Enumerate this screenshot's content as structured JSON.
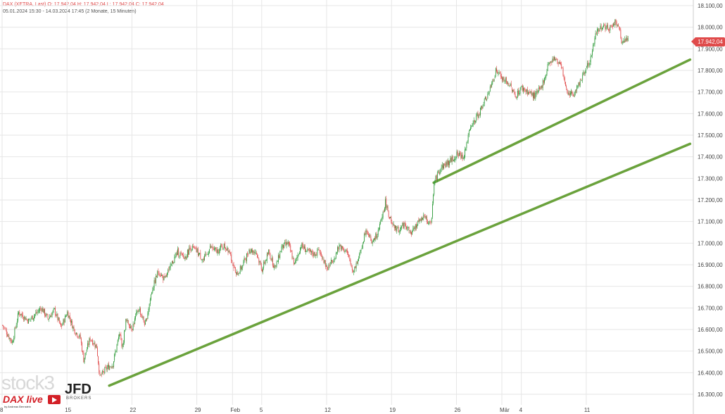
{
  "header": {
    "symbol_line": "DAX (XETRA, Last)  O: 17.942,04  H: 17.942,04  L: 17.942,04  C: 17.942,04",
    "range_line": "05.01.2024 15:30 - 14.03.2024 17:45   (2 Monate, 15 Minuten)"
  },
  "last_price_label": "17.942,04",
  "watermarks": {
    "brand": "stock3",
    "partner": "JFD",
    "partner_sub": "BROKERS",
    "show": "DAX live",
    "byline": "by Andreas Bernstein"
  },
  "colors": {
    "up": "#2e9b3a",
    "down": "#e04b4b",
    "trendline": "#6aa23c",
    "price_tag": "#e04b4b"
  },
  "chart_data": {
    "type": "candlestick",
    "title": "DAX (XETRA, Last)",
    "interval": "15 Minuten",
    "range": "05.01.2024 15:30 - 14.03.2024 17:45",
    "ylim": [
      16300,
      18100
    ],
    "y_ticks": [
      16300,
      16400,
      16500,
      16600,
      16700,
      16800,
      16900,
      17000,
      17100,
      17200,
      17300,
      17400,
      17500,
      17600,
      17700,
      17800,
      17900,
      18000,
      18100
    ],
    "y_tick_labels": [
      "16.300,00",
      "16.400,00",
      "16.500,00",
      "16.600,00",
      "16.700,00",
      "16.800,00",
      "16.900,00",
      "17.000,00",
      "17.100,00",
      "17.200,00",
      "17.300,00",
      "17.400,00",
      "17.500,00",
      "17.600,00",
      "17.700,00",
      "17.800,00",
      "17.900,00",
      "18.000,00",
      "18.100,00"
    ],
    "x_tick_labels": [
      "8",
      "15",
      "22",
      "29",
      "Feb",
      "5",
      "12",
      "19",
      "26",
      "Mär",
      "4",
      "11"
    ],
    "x_tick_idx": [
      0,
      20,
      40,
      60,
      71,
      80,
      100,
      120,
      140,
      154,
      160,
      180
    ],
    "grid": true,
    "close_path": [
      [
        0,
        16620
      ],
      [
        3,
        16540
      ],
      [
        5,
        16680
      ],
      [
        8,
        16640
      ],
      [
        12,
        16700
      ],
      [
        14,
        16650
      ],
      [
        16,
        16690
      ],
      [
        18,
        16610
      ],
      [
        20,
        16680
      ],
      [
        22,
        16600
      ],
      [
        24,
        16560
      ],
      [
        25,
        16460
      ],
      [
        27,
        16560
      ],
      [
        29,
        16520
      ],
      [
        30,
        16380
      ],
      [
        32,
        16420
      ],
      [
        34,
        16440
      ],
      [
        36,
        16580
      ],
      [
        37,
        16520
      ],
      [
        38,
        16640
      ],
      [
        40,
        16610
      ],
      [
        42,
        16700
      ],
      [
        44,
        16620
      ],
      [
        46,
        16780
      ],
      [
        48,
        16870
      ],
      [
        50,
        16830
      ],
      [
        52,
        16900
      ],
      [
        54,
        16960
      ],
      [
        56,
        16930
      ],
      [
        58,
        16980
      ],
      [
        60,
        16960
      ],
      [
        62,
        16920
      ],
      [
        64,
        16980
      ],
      [
        66,
        16960
      ],
      [
        68,
        16990
      ],
      [
        70,
        16960
      ],
      [
        72,
        16850
      ],
      [
        74,
        16900
      ],
      [
        76,
        16970
      ],
      [
        78,
        16960
      ],
      [
        80,
        16880
      ],
      [
        82,
        16960
      ],
      [
        84,
        16880
      ],
      [
        86,
        16980
      ],
      [
        88,
        17000
      ],
      [
        90,
        16900
      ],
      [
        92,
        16990
      ],
      [
        94,
        16960
      ],
      [
        96,
        16950
      ],
      [
        98,
        16960
      ],
      [
        100,
        16880
      ],
      [
        102,
        16930
      ],
      [
        104,
        16990
      ],
      [
        106,
        16960
      ],
      [
        108,
        16870
      ],
      [
        110,
        16940
      ],
      [
        112,
        17070
      ],
      [
        114,
        17000
      ],
      [
        116,
        17060
      ],
      [
        118,
        17190
      ],
      [
        120,
        17080
      ],
      [
        122,
        17060
      ],
      [
        124,
        17090
      ],
      [
        126,
        17040
      ],
      [
        128,
        17100
      ],
      [
        130,
        17120
      ],
      [
        132,
        17080
      ],
      [
        133,
        17280
      ],
      [
        135,
        17350
      ],
      [
        138,
        17380
      ],
      [
        140,
        17410
      ],
      [
        142,
        17400
      ],
      [
        144,
        17520
      ],
      [
        146,
        17580
      ],
      [
        148,
        17640
      ],
      [
        150,
        17700
      ],
      [
        152,
        17800
      ],
      [
        154,
        17760
      ],
      [
        156,
        17740
      ],
      [
        158,
        17680
      ],
      [
        160,
        17720
      ],
      [
        162,
        17700
      ],
      [
        164,
        17680
      ],
      [
        166,
        17720
      ],
      [
        168,
        17820
      ],
      [
        170,
        17850
      ],
      [
        172,
        17830
      ],
      [
        174,
        17700
      ],
      [
        176,
        17690
      ],
      [
        178,
        17750
      ],
      [
        180,
        17820
      ],
      [
        181,
        17840
      ],
      [
        183,
        17980
      ],
      [
        185,
        18010
      ],
      [
        187,
        17990
      ],
      [
        189,
        18030
      ],
      [
        190,
        17990
      ],
      [
        191,
        17920
      ],
      [
        192,
        17942
      ]
    ],
    "gaps": [
      [
        35,
        36
      ],
      [
        50,
        51
      ],
      [
        68,
        69
      ],
      [
        83,
        84
      ],
      [
        96,
        97
      ],
      [
        112,
        113
      ],
      [
        127,
        128
      ],
      [
        154,
        155
      ],
      [
        166,
        167
      ]
    ],
    "n_bars": 193,
    "last_close": 17942.04,
    "trendlines": [
      {
        "x1": 33,
        "y1": 16340,
        "x2": 212,
        "y2": 17460
      },
      {
        "x1": 133,
        "y1": 17280,
        "x2": 212,
        "y2": 17850
      }
    ]
  }
}
